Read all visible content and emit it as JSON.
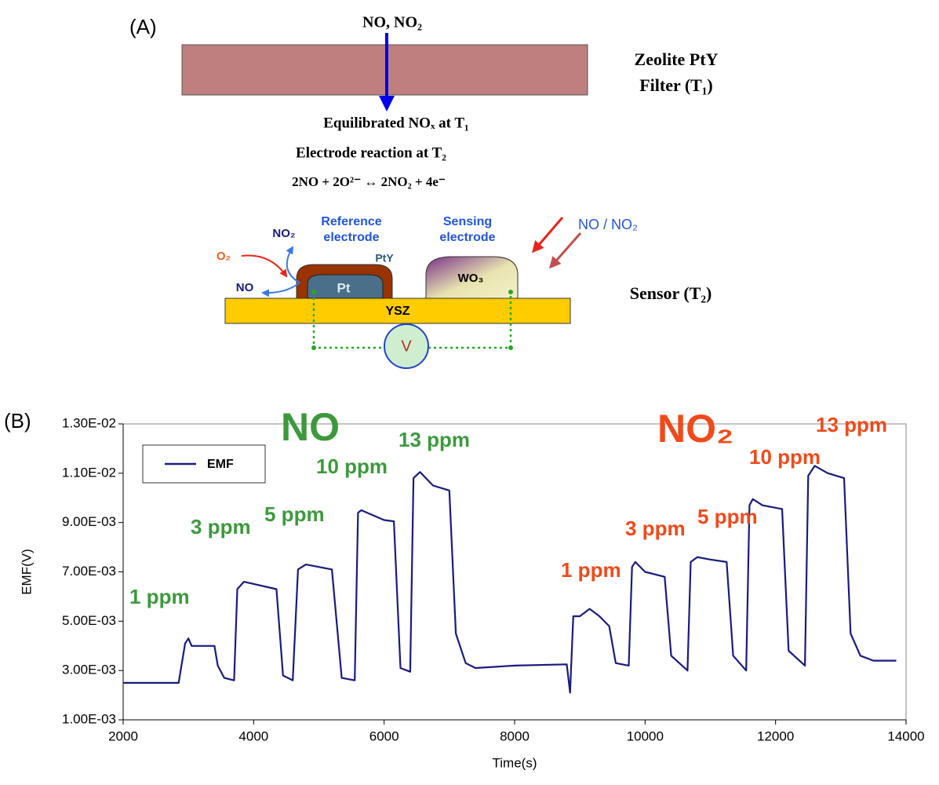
{
  "panel_a": {
    "label": "(A)",
    "inlet": "NO, NO₂",
    "filter_label": [
      "Zeolite PtY",
      "Filter (T₁)"
    ],
    "equilibrated": "Equilibrated NOₓ at T₁",
    "electrode_reaction": "Electrode reaction at T₂",
    "equation": "2NO + 2O²⁻ ↔ 2NO₂ + 4e⁻",
    "reference_electrode": [
      "Reference",
      "electrode"
    ],
    "sensing_electrode": [
      "Sensing",
      "electrode"
    ],
    "no2": "NO₂",
    "o2": "O₂",
    "no": "NO",
    "pty": "PtY",
    "pt": "Pt",
    "wo3": "WO₃",
    "ysz": "YSZ",
    "v": "V",
    "gas": "NO / NO₂",
    "sensor": "Sensor (T₂)"
  },
  "panel_b_label": "(B)",
  "chart_data": {
    "type": "line",
    "xlabel": "Time(s)",
    "ylabel": "EMF(V)",
    "xlim": [
      2000,
      14000
    ],
    "xticks": [
      2000,
      4000,
      6000,
      8000,
      10000,
      12000,
      14000
    ],
    "ylim": [
      0.001,
      0.013
    ],
    "yticks": [
      {
        "value": 0.001,
        "label": "1.00E-03"
      },
      {
        "value": 0.003,
        "label": "3.00E-03"
      },
      {
        "value": 0.005,
        "label": "5.00E-03"
      },
      {
        "value": 0.007,
        "label": "7.00E-03"
      },
      {
        "value": 0.009,
        "label": "9.00E-03"
      },
      {
        "value": 0.011,
        "label": "1.10E-02"
      },
      {
        "value": 0.013,
        "label": "1.30E-02"
      }
    ],
    "grid": false,
    "legend": "upper left",
    "x": [
      2000,
      2850,
      2950,
      3000,
      3050,
      3400,
      3450,
      3550,
      3700,
      3750,
      3850,
      4350,
      4450,
      4600,
      4680,
      4800,
      5200,
      5350,
      5550,
      5600,
      5650,
      6000,
      6150,
      6250,
      6400,
      6450,
      6550,
      6750,
      7000,
      7100,
      7250,
      7400,
      8000,
      8800,
      8850,
      8900,
      9000,
      9150,
      9300,
      9450,
      9550,
      9750,
      9800,
      9850,
      10000,
      10300,
      10400,
      10650,
      10700,
      10800,
      11000,
      11250,
      11350,
      11550,
      11600,
      11650,
      11800,
      12100,
      12200,
      12450,
      12500,
      12600,
      12800,
      13050,
      13150,
      13300,
      13500,
      13850
    ],
    "series": [
      {
        "name": "EMF",
        "color": "#1a1a80",
        "values": [
          0.0025,
          0.0025,
          0.0041,
          0.0043,
          0.004,
          0.004,
          0.0032,
          0.0027,
          0.0026,
          0.0063,
          0.0066,
          0.0063,
          0.0028,
          0.0026,
          0.0071,
          0.0073,
          0.0071,
          0.0027,
          0.0026,
          0.0094,
          0.0095,
          0.0091,
          0.00905,
          0.0031,
          0.00295,
          0.0108,
          0.01105,
          0.0105,
          0.0103,
          0.0045,
          0.0033,
          0.0031,
          0.0032,
          0.00325,
          0.0021,
          0.0052,
          0.0052,
          0.0055,
          0.0052,
          0.0048,
          0.0033,
          0.0032,
          0.0072,
          0.0074,
          0.007,
          0.0068,
          0.0036,
          0.003,
          0.0074,
          0.0076,
          0.0075,
          0.0074,
          0.0036,
          0.003,
          0.0097,
          0.00995,
          0.0097,
          0.00955,
          0.0038,
          0.0032,
          0.0109,
          0.0113,
          0.011,
          0.0108,
          0.0045,
          0.0036,
          0.0034,
          0.0034
        ]
      }
    ],
    "annotations": [
      {
        "text": "NO",
        "color": "#3c9a3c"
      },
      {
        "text": "1 ppm",
        "color": "#3c9a3c"
      },
      {
        "text": "3 ppm",
        "color": "#3c9a3c"
      },
      {
        "text": "5 ppm",
        "color": "#3c9a3c"
      },
      {
        "text": "10 ppm",
        "color": "#3c9a3c"
      },
      {
        "text": "13 ppm",
        "color": "#3c9a3c"
      },
      {
        "text": "NO₂",
        "color": "#f04a1a"
      },
      {
        "text": "1 ppm",
        "color": "#f04a1a"
      },
      {
        "text": "3 ppm",
        "color": "#f04a1a"
      },
      {
        "text": "5 ppm",
        "color": "#f04a1a"
      },
      {
        "text": "10 ppm",
        "color": "#f04a1a"
      },
      {
        "text": "13 ppm",
        "color": "#f04a1a"
      }
    ]
  }
}
